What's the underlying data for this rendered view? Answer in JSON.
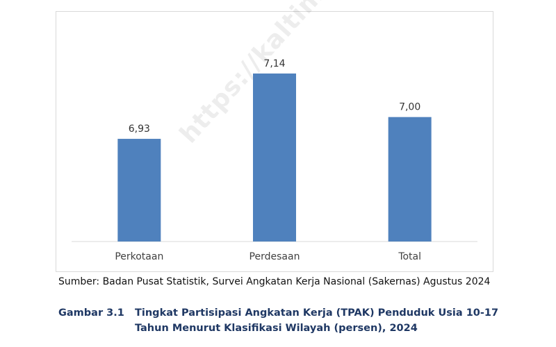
{
  "watermark": "https://kaltim.bps.go.id",
  "chart_data": {
    "type": "bar",
    "categories": [
      "Perkotaan",
      "Perdesaan",
      "Total"
    ],
    "values": [
      6.93,
      7.14,
      7.0
    ],
    "value_labels": [
      "6,93",
      "7,14",
      "7,00"
    ],
    "ylim": [
      6.6,
      7.2
    ],
    "grid": false,
    "legend": "none",
    "bar_color": "#4f81bd",
    "axis_color": "#d9d9d9"
  },
  "source": "Sumber: Badan Pusat Statistik, Survei Angkatan Kerja Nasional (Sakernas) Agustus 2024",
  "caption": {
    "number": "Gambar 3.1",
    "line1": "Tingkat Partisipasi Angkatan Kerja (TPAK) Penduduk Usia 10-17",
    "line2": "Tahun Menurut Klasifikasi Wilayah (persen), 2024"
  }
}
